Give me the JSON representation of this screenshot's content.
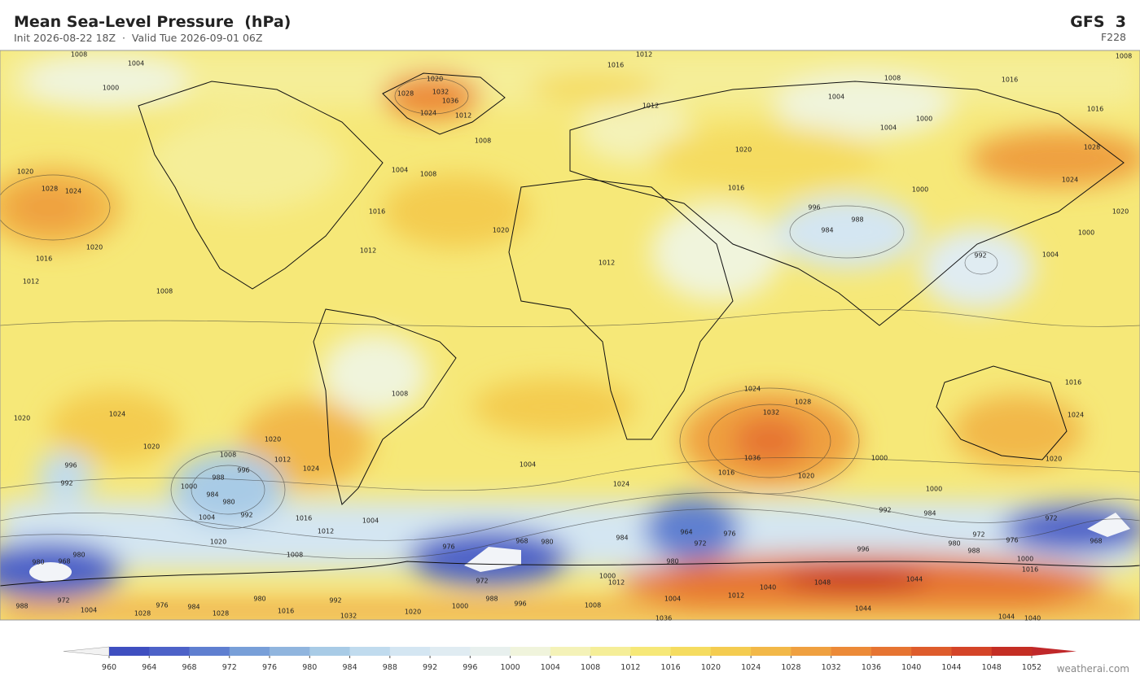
{
  "header": {
    "title": "Mean Sea-Level Pressure  (hPa)",
    "subtitle": "Init 2026-08-22 18Z  ·  Valid Tue 2026-09-01 06Z",
    "model": "GFS  3",
    "forecast_hour": "F228"
  },
  "contour_labels": [
    "1008",
    "1004",
    "1000",
    "1012",
    "1016",
    "1008",
    "1020",
    "1032",
    "1036",
    "1028",
    "1024",
    "1012",
    "1008",
    "1012",
    "1008",
    "1016",
    "1004",
    "1000",
    "1004",
    "1016",
    "1020",
    "1028",
    "1024",
    "1000",
    "1016",
    "996",
    "988",
    "984",
    "992",
    "1004",
    "1000",
    "1020",
    "1020",
    "1028",
    "1024",
    "1020",
    "1016",
    "1012",
    "1008",
    "1016",
    "1012",
    "1020",
    "1004",
    "1008",
    "1012",
    "1008",
    "1024",
    "1020",
    "1020",
    "1008",
    "996",
    "988",
    "1000",
    "984",
    "980",
    "992",
    "1004",
    "996",
    "992",
    "1020",
    "1012",
    "1024",
    "1016",
    "1012",
    "1004",
    "1004",
    "1024",
    "1028",
    "1032",
    "1036",
    "1016",
    "1020",
    "1024",
    "1000",
    "1000",
    "1016",
    "1024",
    "1020",
    "984",
    "964",
    "972",
    "976",
    "980",
    "992",
    "984",
    "972",
    "972",
    "968",
    "980",
    "976",
    "988",
    "1000",
    "996",
    "976",
    "968",
    "980",
    "972",
    "1020",
    "1008",
    "980",
    "968",
    "980",
    "1000",
    "1012",
    "1004",
    "1012",
    "1040",
    "1048",
    "1044",
    "1044",
    "980",
    "992",
    "988",
    "996",
    "1000",
    "1008",
    "976",
    "984",
    "1004",
    "1028",
    "1028",
    "1016",
    "1020",
    "1032",
    "1036",
    "1044",
    "1040",
    "988",
    "972",
    "1016"
  ],
  "colorbar": {
    "ticks": [
      960,
      964,
      968,
      972,
      976,
      980,
      984,
      988,
      992,
      996,
      1000,
      1004,
      1008,
      1012,
      1016,
      1020,
      1024,
      1028,
      1032,
      1036,
      1040,
      1044,
      1048,
      1052
    ],
    "colors": [
      "#3f4fc0",
      "#4d62c8",
      "#5f7fd0",
      "#789fd8",
      "#90b5de",
      "#a8cbe6",
      "#c0dbee",
      "#d4e6f2",
      "#e0ecf2",
      "#e8f0ee",
      "#f0f4dc",
      "#f4f2b8",
      "#f5ee98",
      "#f6e878",
      "#f5dc60",
      "#f4cc50",
      "#f2b848",
      "#efa040",
      "#ec8a38",
      "#e67432",
      "#de5c2c",
      "#d44428",
      "#c42e24"
    ],
    "under_color": "#f2f2f2",
    "over_color": "#c0282a"
  },
  "watermark": "weatherai.com"
}
